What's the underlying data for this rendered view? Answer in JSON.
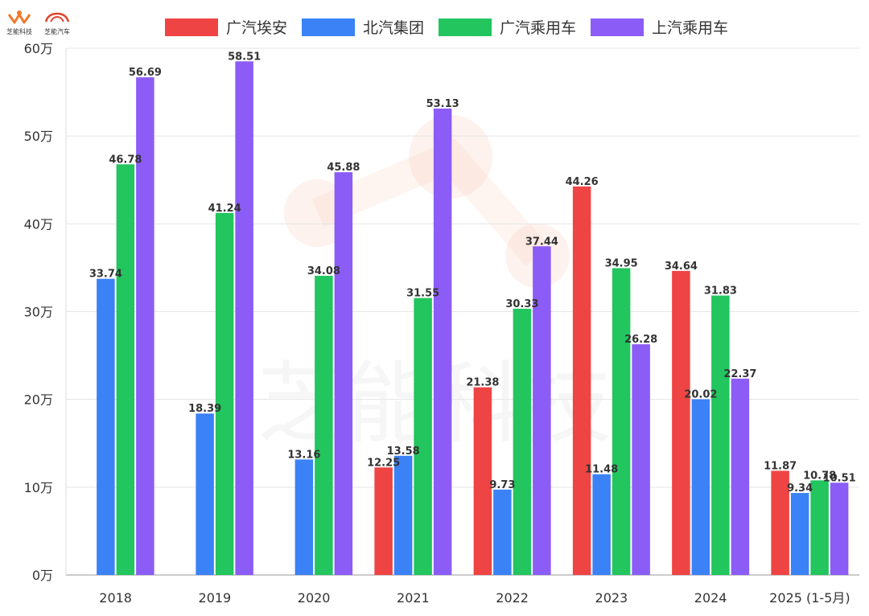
{
  "brand": {
    "logo1_text": "芝能科技",
    "logo2_text": "芝能汽车",
    "watermark": "芝能科技"
  },
  "chart_data": {
    "type": "bar",
    "categories": [
      "2018",
      "2019",
      "2020",
      "2021",
      "2022",
      "2023",
      "2024",
      "2025 (1-5月)"
    ],
    "series": [
      {
        "name": "广汽埃安",
        "color": "#ef4444",
        "values": [
          null,
          null,
          null,
          12.25,
          21.38,
          44.26,
          34.64,
          11.87
        ]
      },
      {
        "name": "北汽集团",
        "color": "#3b82f6",
        "values": [
          33.74,
          18.39,
          13.16,
          13.58,
          9.73,
          11.48,
          20.02,
          9.34
        ]
      },
      {
        "name": "广汽乘用车",
        "color": "#22c55e",
        "values": [
          46.78,
          41.24,
          34.08,
          31.55,
          30.33,
          34.95,
          31.83,
          10.78
        ]
      },
      {
        "name": "上汽乘用车",
        "color": "#8b5cf6",
        "values": [
          56.69,
          58.51,
          45.88,
          53.13,
          37.44,
          26.28,
          22.37,
          10.51
        ]
      }
    ],
    "yticks": [
      "0万",
      "10万",
      "20万",
      "30万",
      "40万",
      "50万",
      "60万"
    ],
    "ylim": [
      0,
      60
    ],
    "grid": true,
    "legend_position": "top"
  }
}
